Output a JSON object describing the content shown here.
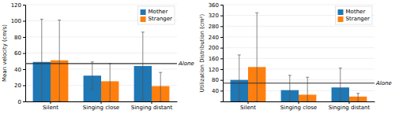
{
  "chart_data": [
    {
      "type": "bar",
      "ylabel": "Mean velocity (cm/s)",
      "categories": [
        "Silent",
        "Singing close",
        "Singing distant"
      ],
      "series": [
        {
          "name": "Mother",
          "values": [
            49,
            32,
            44
          ],
          "errors_plus": [
            53,
            17,
            42
          ],
          "errors_minus": [
            49,
            17,
            42
          ]
        },
        {
          "name": "Stranger",
          "values": [
            51,
            25,
            19
          ],
          "errors_plus": [
            50,
            22,
            17
          ],
          "errors_minus": [
            51,
            25,
            19
          ]
        }
      ],
      "baseline": {
        "value": 47,
        "label": "Alone"
      },
      "ylim": [
        0,
        120
      ],
      "yticks": [
        0,
        20,
        40,
        60,
        80,
        100,
        120
      ],
      "grid": true,
      "legend": "upper right"
    },
    {
      "type": "bar",
      "ylabel": "Utilization Distribution (cm²)",
      "categories": [
        "Silent",
        "Singing close",
        "Singing distant"
      ],
      "series": [
        {
          "name": "Mother",
          "values": [
            80,
            42,
            52
          ],
          "errors_plus": [
            93,
            55,
            72
          ],
          "errors_minus": [
            80,
            42,
            52
          ]
        },
        {
          "name": "Stranger",
          "values": [
            128,
            25,
            18
          ],
          "errors_plus": [
            202,
            65,
            12
          ],
          "errors_minus": [
            128,
            25,
            18
          ]
        }
      ],
      "baseline": {
        "value": 68,
        "label": "Alone"
      },
      "ylim": [
        0,
        360
      ],
      "yticks": [
        40,
        80,
        120,
        160,
        200,
        240,
        280,
        320,
        360
      ],
      "grid": true,
      "legend": "upper right"
    }
  ]
}
